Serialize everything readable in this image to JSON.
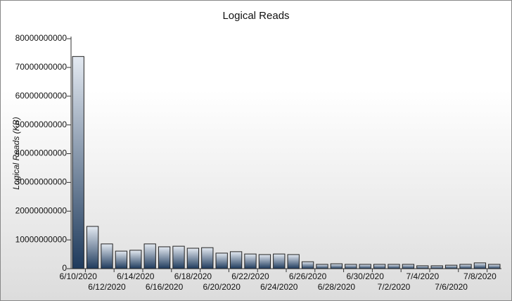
{
  "chart_data": {
    "type": "bar",
    "title": "Logical Reads",
    "y_label": "Logical Reads (KB)",
    "categories": [
      "6/10/2020",
      null,
      "6/12/2020",
      null,
      "6/14/2020",
      null,
      "6/16/2020",
      null,
      "6/18/2020",
      null,
      "6/20/2020",
      null,
      "6/22/2020",
      null,
      "6/24/2020",
      null,
      "6/26/2020",
      null,
      "6/28/2020",
      null,
      "6/30/2020",
      null,
      "7/2/2020",
      null,
      "7/4/2020",
      null,
      "7/6/2020",
      null,
      "7/8/2020",
      null
    ],
    "values": [
      73800000000,
      14700000000,
      8600000000,
      6100000000,
      6400000000,
      8600000000,
      7600000000,
      7800000000,
      7100000000,
      7300000000,
      5400000000,
      5900000000,
      5100000000,
      4900000000,
      5100000000,
      4900000000,
      2400000000,
      1500000000,
      1700000000,
      1500000000,
      1500000000,
      1500000000,
      1500000000,
      1500000000,
      1000000000,
      1000000000,
      1200000000,
      1500000000,
      2000000000,
      1500000000
    ],
    "color": "#1e3a5c",
    "ylim": [
      0,
      80000000000
    ],
    "yticks": [
      0,
      10000000000,
      20000000000,
      30000000000,
      40000000000,
      50000000000,
      60000000000,
      70000000000,
      80000000000
    ]
  }
}
